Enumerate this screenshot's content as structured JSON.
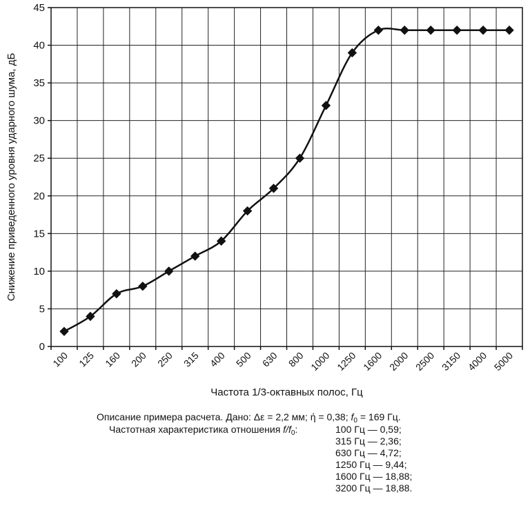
{
  "chart_data": {
    "type": "line",
    "ylabel": "Снижение приведенного уровня ударного шума, дБ",
    "xlabel": "Частота 1/3-октавных полос, Гц",
    "categories": [
      "100",
      "125",
      "160",
      "200",
      "250",
      "315",
      "400",
      "500",
      "630",
      "800",
      "1000",
      "1250",
      "1600",
      "2000",
      "2500",
      "3150",
      "4000",
      "5000"
    ],
    "values": [
      2,
      4,
      7,
      8,
      10,
      12,
      14,
      18,
      21,
      25,
      32,
      39,
      42,
      42,
      42,
      42,
      42,
      42
    ],
    "ylim": [
      0,
      45
    ],
    "yticks": [
      0,
      5,
      10,
      15,
      20,
      25,
      30,
      35,
      40,
      45
    ],
    "grid": true,
    "marker": "diamond",
    "line_color": "#111111"
  },
  "caption": {
    "line1_prefix": "Описание примера расчета.  Дано:  Δε = 2,2 мм;  ",
    "eta_symbol": "ή",
    "line1_eta_value": " = 0,38;  ",
    "f0_symbol": "f",
    "f0_sub": "0",
    "line1_f0_value": " = 169 Гц.",
    "line2_prefix": "Частотная характеристика отношения ",
    "ratio_num": "f/f",
    "ratio_sub": "0",
    "ratio_colon": ":",
    "list": [
      "100 Гц — 0,59;",
      "315 Гц — 2,36;",
      "630 Гц — 4,72;",
      "1250 Гц — 9,44;",
      "1600 Гц — 18,88;",
      "3200 Гц —  18,88."
    ]
  }
}
